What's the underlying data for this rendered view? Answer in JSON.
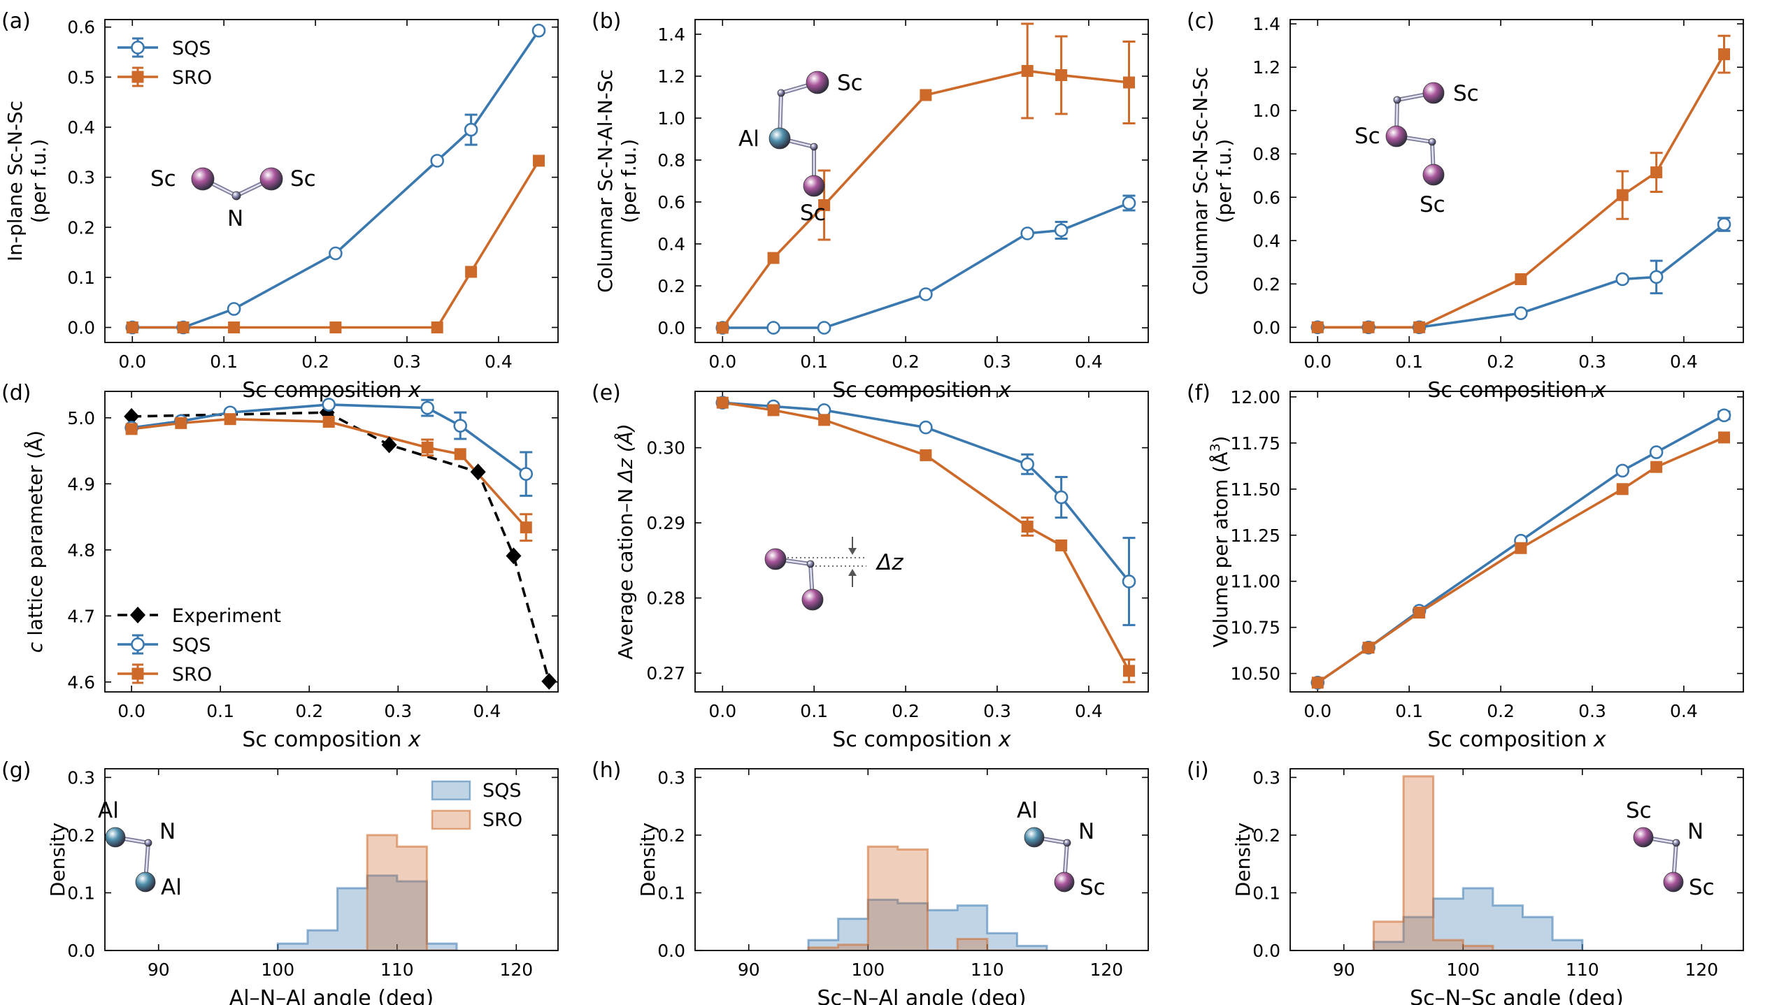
{
  "colors": {
    "sqs": "#3a78b0",
    "sro": "#cd6a2a",
    "exp": "#000000",
    "sc_atom": "#a9559b",
    "al_atom": "#4f90ad",
    "n_atom": "#8f8fb8"
  },
  "chart_data": [
    {
      "id": "a",
      "panel_label": "(a)",
      "type": "line",
      "xlabel": "Sc composition x",
      "xlabel_main": "Sc composition ",
      "xlabel_italic": "x",
      "ylabel_lines": [
        "In-plane Sc-N-Sc",
        "(per f.u.)"
      ],
      "xlim": [
        -0.03,
        0.465
      ],
      "ylim": [
        -0.03,
        0.615
      ],
      "xticks": [
        0.0,
        0.1,
        0.2,
        0.3,
        0.4
      ],
      "xtick_labels": [
        "0.0",
        "0.1",
        "0.2",
        "0.3",
        "0.4"
      ],
      "yticks": [
        0.0,
        0.1,
        0.2,
        0.3,
        0.4,
        0.5,
        0.6
      ],
      "ytick_labels": [
        "0.0",
        "0.1",
        "0.2",
        "0.3",
        "0.4",
        "0.5",
        "0.6"
      ],
      "legend": {
        "position": "top-left",
        "entries": [
          "SQS",
          "SRO"
        ]
      },
      "series": [
        {
          "name": "SQS",
          "style": "sqs",
          "x": [
            0.0,
            0.0556,
            0.111,
            0.222,
            0.333,
            0.37,
            0.444
          ],
          "y": [
            0.0,
            0.0,
            0.037,
            0.148,
            0.333,
            0.395,
            0.593
          ],
          "err": [
            0,
            0,
            0,
            0,
            0,
            0.03,
            0
          ]
        },
        {
          "name": "SRO",
          "style": "sro",
          "x": [
            0.0,
            0.0556,
            0.111,
            0.222,
            0.333,
            0.37,
            0.444
          ],
          "y": [
            0.0,
            0.0,
            0.0,
            0.0,
            0.0,
            0.111,
            0.333
          ],
          "err": [
            0,
            0,
            0,
            0,
            0,
            0,
            0
          ]
        }
      ],
      "motif": {
        "type": "inplane",
        "labels": [
          "Sc",
          "Sc",
          "N"
        ]
      }
    },
    {
      "id": "b",
      "panel_label": "(b)",
      "type": "line",
      "xlabel": "Sc composition x",
      "xlabel_main": "Sc composition ",
      "xlabel_italic": "x",
      "ylabel_lines": [
        "Columnar Sc-N-Al-N-Sc",
        "(per f.u.)"
      ],
      "xlim": [
        -0.03,
        0.465
      ],
      "ylim": [
        -0.07,
        1.47
      ],
      "xticks": [
        0.0,
        0.1,
        0.2,
        0.3,
        0.4
      ],
      "xtick_labels": [
        "0.0",
        "0.1",
        "0.2",
        "0.3",
        "0.4"
      ],
      "yticks": [
        0.0,
        0.2,
        0.4,
        0.6,
        0.8,
        1.0,
        1.2,
        1.4
      ],
      "ytick_labels": [
        "0.0",
        "0.2",
        "0.4",
        "0.6",
        "0.8",
        "1.0",
        "1.2",
        "1.4"
      ],
      "series": [
        {
          "name": "SQS",
          "style": "sqs",
          "x": [
            0.0,
            0.0556,
            0.111,
            0.222,
            0.333,
            0.37,
            0.444
          ],
          "y": [
            0.0,
            0.0,
            0.0,
            0.16,
            0.45,
            0.465,
            0.595
          ],
          "err": [
            0,
            0,
            0,
            0,
            0,
            0.04,
            0.035
          ]
        },
        {
          "name": "SRO",
          "style": "sro",
          "x": [
            0.0,
            0.0556,
            0.111,
            0.222,
            0.333,
            0.37,
            0.444
          ],
          "y": [
            0.0,
            0.333,
            0.585,
            1.11,
            1.225,
            1.205,
            1.17
          ],
          "err": [
            0,
            0,
            0.165,
            0,
            0.225,
            0.185,
            0.195
          ]
        }
      ],
      "motif": {
        "type": "columnar_al",
        "labels": [
          "Sc",
          "Al",
          "Sc"
        ]
      }
    },
    {
      "id": "c",
      "panel_label": "(c)",
      "type": "line",
      "xlabel": "Sc composition x",
      "xlabel_main": "Sc composition ",
      "xlabel_italic": "x",
      "ylabel_lines": [
        "Columnar Sc-N-Sc-N-Sc",
        "(per f.u.)"
      ],
      "xlim": [
        -0.03,
        0.465
      ],
      "ylim": [
        -0.07,
        1.42
      ],
      "xticks": [
        0.0,
        0.1,
        0.2,
        0.3,
        0.4
      ],
      "xtick_labels": [
        "0.0",
        "0.1",
        "0.2",
        "0.3",
        "0.4"
      ],
      "yticks": [
        0.0,
        0.2,
        0.4,
        0.6,
        0.8,
        1.0,
        1.2,
        1.4
      ],
      "ytick_labels": [
        "0.0",
        "0.2",
        "0.4",
        "0.6",
        "0.8",
        "1.0",
        "1.2",
        "1.4"
      ],
      "series": [
        {
          "name": "SQS",
          "style": "sqs",
          "x": [
            0.0,
            0.0556,
            0.111,
            0.222,
            0.333,
            0.37,
            0.444
          ],
          "y": [
            0.0,
            0.0,
            0.0,
            0.065,
            0.222,
            0.232,
            0.475
          ],
          "err": [
            0,
            0,
            0,
            0,
            0,
            0.075,
            0.03
          ]
        },
        {
          "name": "SRO",
          "style": "sro",
          "x": [
            0.0,
            0.0556,
            0.111,
            0.222,
            0.333,
            0.37,
            0.444
          ],
          "y": [
            0.0,
            0.0,
            0.0,
            0.222,
            0.61,
            0.715,
            1.26
          ],
          "err": [
            0,
            0,
            0,
            0,
            0.11,
            0.09,
            0.085
          ]
        }
      ],
      "motif": {
        "type": "columnar_sc",
        "labels": [
          "Sc",
          "Sc",
          "Sc"
        ]
      }
    },
    {
      "id": "d",
      "panel_label": "(d)",
      "type": "line",
      "xlabel": "Sc composition x",
      "xlabel_main": "Sc composition ",
      "xlabel_italic": "x",
      "ylabel_italic": "c",
      "ylabel_main": " lattice parameter (Å)",
      "xlim": [
        -0.03,
        0.48
      ],
      "ylim": [
        4.585,
        5.04
      ],
      "xticks": [
        0.0,
        0.1,
        0.2,
        0.3,
        0.4
      ],
      "xtick_labels": [
        "0.0",
        "0.1",
        "0.2",
        "0.3",
        "0.4"
      ],
      "yticks": [
        4.6,
        4.7,
        4.8,
        4.9,
        5.0
      ],
      "ytick_labels": [
        "4.6",
        "4.7",
        "4.8",
        "4.9",
        "5.0"
      ],
      "legend": {
        "position": "bottom-left",
        "entries": [
          "Experiment",
          "SQS",
          "SRO"
        ]
      },
      "series": [
        {
          "name": "Experiment",
          "style": "exp",
          "x": [
            0.0,
            0.22,
            0.29,
            0.39,
            0.43,
            0.47
          ],
          "y": [
            5.002,
            5.008,
            4.959,
            4.918,
            4.791,
            4.601
          ],
          "err": [
            0,
            0,
            0,
            0,
            0,
            0
          ]
        },
        {
          "name": "SQS",
          "style": "sqs",
          "x": [
            0.0,
            0.0556,
            0.111,
            0.222,
            0.333,
            0.37,
            0.444
          ],
          "y": [
            4.985,
            4.995,
            5.008,
            5.02,
            5.015,
            4.988,
            4.915
          ],
          "err": [
            0,
            0,
            0,
            0,
            0.012,
            0.02,
            0.033
          ]
        },
        {
          "name": "SRO",
          "style": "sro",
          "x": [
            0.0,
            0.0556,
            0.111,
            0.222,
            0.333,
            0.37,
            0.444
          ],
          "y": [
            4.983,
            4.992,
            4.998,
            4.994,
            4.955,
            4.945,
            4.834
          ],
          "err": [
            0,
            0,
            0,
            0,
            0.012,
            0,
            0.02
          ]
        }
      ]
    },
    {
      "id": "e",
      "panel_label": "(e)",
      "type": "line",
      "xlabel": "Sc composition x",
      "xlabel_main": "Sc composition ",
      "xlabel_italic": "x",
      "ylabel_main": "Average cation–N ",
      "ylabel_italic": "Δz (Å)",
      "xlim": [
        -0.03,
        0.465
      ],
      "ylim": [
        0.2675,
        0.3075
      ],
      "xticks": [
        0.0,
        0.1,
        0.2,
        0.3,
        0.4
      ],
      "xtick_labels": [
        "0.0",
        "0.1",
        "0.2",
        "0.3",
        "0.4"
      ],
      "yticks": [
        0.27,
        0.28,
        0.29,
        0.3
      ],
      "ytick_labels": [
        "0.27",
        "0.28",
        "0.29",
        "0.30"
      ],
      "series": [
        {
          "name": "SQS",
          "style": "sqs",
          "x": [
            0.0,
            0.0556,
            0.111,
            0.222,
            0.333,
            0.37,
            0.444
          ],
          "y": [
            0.306,
            0.3055,
            0.305,
            0.3027,
            0.2978,
            0.2934,
            0.2822
          ],
          "err": [
            0,
            0,
            0,
            0,
            0.0013,
            0.0027,
            0.0058
          ]
        },
        {
          "name": "SRO",
          "style": "sro",
          "x": [
            0.0,
            0.0556,
            0.111,
            0.222,
            0.333,
            0.37,
            0.444
          ],
          "y": [
            0.306,
            0.305,
            0.3037,
            0.299,
            0.2895,
            0.287,
            0.2703
          ],
          "err": [
            0,
            0,
            0,
            0,
            0.0012,
            0,
            0.0015
          ]
        }
      ],
      "motif": {
        "type": "deltaz",
        "labels": [
          "Δz"
        ]
      }
    },
    {
      "id": "f",
      "panel_label": "(f)",
      "type": "line",
      "xlabel": "Sc composition x",
      "xlabel_main": "Sc composition ",
      "xlabel_italic": "x",
      "ylabel_main": "Volume per atom (Å",
      "ylabel_sup": "3",
      "ylabel_end": ")",
      "xlim": [
        -0.03,
        0.465
      ],
      "ylim": [
        10.4,
        12.03
      ],
      "xticks": [
        0.0,
        0.1,
        0.2,
        0.3,
        0.4
      ],
      "xtick_labels": [
        "0.0",
        "0.1",
        "0.2",
        "0.3",
        "0.4"
      ],
      "yticks": [
        10.5,
        10.75,
        11.0,
        11.25,
        11.5,
        11.75,
        12.0
      ],
      "ytick_labels": [
        "10.50",
        "10.75",
        "11.00",
        "11.25",
        "11.50",
        "11.75",
        "12.00"
      ],
      "series": [
        {
          "name": "SQS",
          "style": "sqs",
          "x": [
            0.0,
            0.0556,
            0.111,
            0.222,
            0.333,
            0.37,
            0.444
          ],
          "y": [
            10.45,
            10.64,
            10.84,
            11.22,
            11.6,
            11.7,
            11.9
          ],
          "err": [
            0,
            0,
            0,
            0,
            0,
            0,
            0.02
          ]
        },
        {
          "name": "SRO",
          "style": "sro",
          "x": [
            0.0,
            0.0556,
            0.111,
            0.222,
            0.333,
            0.37,
            0.444
          ],
          "y": [
            10.45,
            10.64,
            10.83,
            11.18,
            11.5,
            11.62,
            11.78
          ],
          "err": [
            0,
            0,
            0,
            0,
            0,
            0,
            0
          ]
        }
      ]
    },
    {
      "id": "g",
      "panel_label": "(g)",
      "type": "histogram",
      "xlabel": "Al–N–Al angle (deg)",
      "ylabel": "Density",
      "xlim": [
        85.5,
        123.5
      ],
      "ylim": [
        0.0,
        0.315
      ],
      "xticks": [
        90,
        100,
        110,
        120
      ],
      "xtick_labels": [
        "90",
        "100",
        "110",
        "120"
      ],
      "yticks": [
        0.0,
        0.1,
        0.2,
        0.3
      ],
      "ytick_labels": [
        "0.0",
        "0.1",
        "0.2",
        "0.3"
      ],
      "bin_edges": [
        100,
        102.5,
        105,
        107.5,
        110,
        112.5,
        115
      ],
      "legend": {
        "position": "top-right",
        "entries": [
          "SQS",
          "SRO"
        ]
      },
      "series": [
        {
          "name": "SQS",
          "style": "sqs",
          "values": [
            0.012,
            0.035,
            0.108,
            0.13,
            0.12,
            0.012
          ]
        },
        {
          "name": "SRO",
          "style": "sro",
          "values": [
            0.0,
            0.0,
            0.0,
            0.2,
            0.18,
            0.0
          ]
        }
      ],
      "motif": {
        "type": "angle",
        "labels": [
          "Al",
          "N",
          "Al"
        ]
      }
    },
    {
      "id": "h",
      "panel_label": "(h)",
      "type": "histogram",
      "xlabel": "Sc–N–Al angle (deg)",
      "ylabel": "Density",
      "xlim": [
        85.5,
        123.5
      ],
      "ylim": [
        0.0,
        0.315
      ],
      "xticks": [
        90,
        100,
        110,
        120
      ],
      "xtick_labels": [
        "90",
        "100",
        "110",
        "120"
      ],
      "bin_edges": [
        95,
        97.5,
        100,
        102.5,
        105,
        107.5,
        110,
        112.5,
        115
      ],
      "yticks": [
        0.0,
        0.1,
        0.2,
        0.3
      ],
      "ytick_labels": [
        "0.0",
        "0.1",
        "0.2",
        "0.3"
      ],
      "series": [
        {
          "name": "SQS",
          "style": "sqs",
          "values": [
            0.018,
            0.055,
            0.088,
            0.082,
            0.07,
            0.078,
            0.03,
            0.008
          ]
        },
        {
          "name": "SRO",
          "style": "sro",
          "values": [
            0.005,
            0.01,
            0.18,
            0.175,
            0.0,
            0.02,
            0.0,
            0.0
          ]
        }
      ],
      "motif": {
        "type": "angle",
        "labels": [
          "Al",
          "N",
          "Sc"
        ]
      }
    },
    {
      "id": "i",
      "panel_label": "(i)",
      "type": "histogram",
      "xlabel": "Sc–N–Sc angle (deg)",
      "ylabel": "Density",
      "xlim": [
        85.5,
        123.5
      ],
      "ylim": [
        0.0,
        0.315
      ],
      "xticks": [
        90,
        100,
        110,
        120
      ],
      "xtick_labels": [
        "90",
        "100",
        "110",
        "120"
      ],
      "bin_edges": [
        92.5,
        95,
        97.5,
        100,
        102.5,
        105,
        107.5,
        110
      ],
      "yticks": [
        0.0,
        0.1,
        0.2,
        0.3
      ],
      "ytick_labels": [
        "0.0",
        "0.1",
        "0.2",
        "0.3"
      ],
      "series": [
        {
          "name": "SQS",
          "style": "sqs",
          "values": [
            0.015,
            0.058,
            0.09,
            0.108,
            0.078,
            0.058,
            0.018
          ]
        },
        {
          "name": "SRO",
          "style": "sro",
          "values": [
            0.05,
            0.302,
            0.018,
            0.008,
            0.0,
            0.0,
            0.0
          ]
        }
      ],
      "motif": {
        "type": "angle",
        "labels": [
          "Sc",
          "N",
          "Sc"
        ]
      }
    }
  ]
}
